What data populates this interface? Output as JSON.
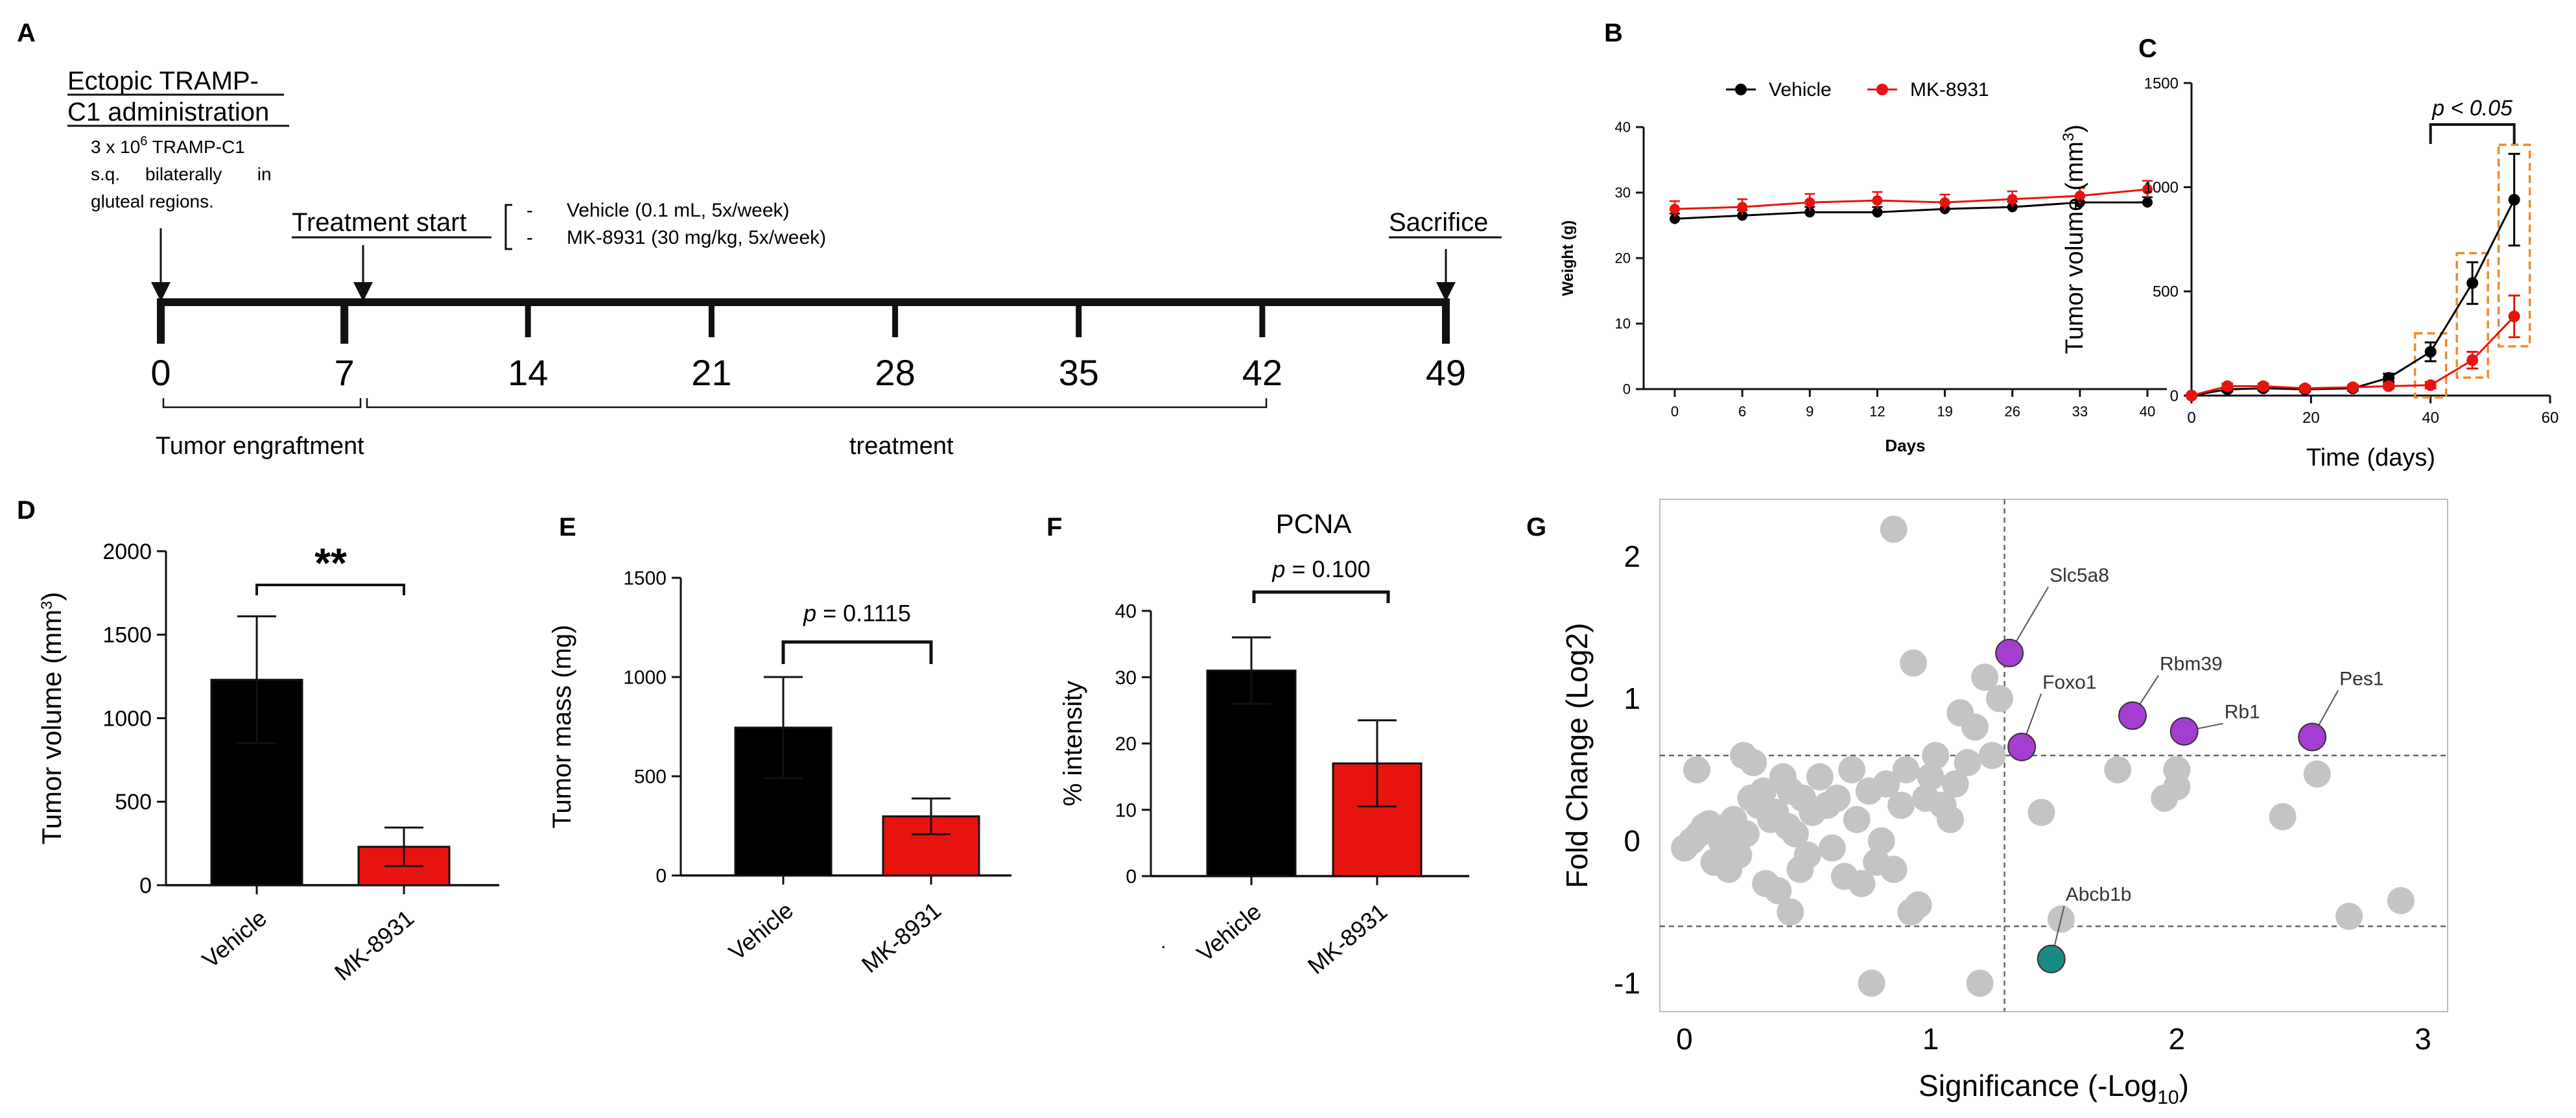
{
  "colors": {
    "vehicle": "#000000",
    "mk": "#e8130f",
    "gray_point": "#c4c4c4",
    "purple": "#a43ed1",
    "teal": "#1a8b84",
    "orange_box": "#f08a2a",
    "dash": "#666666"
  },
  "panels": {
    "A": {
      "letter": "A",
      "ectopic_line1": "Ectopic TRAMP-",
      "ectopic_line2": "C1 administration",
      "desc_line1": "3   x   10",
      "desc_sup": "6",
      "desc_line1_rest": "  TRAMP-C1",
      "desc_line2": "s.q.     bilaterally       in",
      "desc_line3": "gluteal regions.",
      "treatment_start": "Treatment start",
      "vehicle_regimen": "Vehicle (0.1 mL, 5x/week)",
      "mk_regimen": "MK-8931 (30 mg/kg, 5x/week)",
      "dash_mark": "-",
      "sacrifice": "Sacrifice",
      "days": [
        "0",
        "7",
        "14",
        "21",
        "28",
        "35",
        "42",
        "49"
      ],
      "engraftment_label": "Tumor engraftment",
      "treatment_label": "treatment"
    },
    "B": {
      "letter": "B"
    },
    "C": {
      "letter": "C"
    },
    "D": {
      "letter": "D"
    },
    "E": {
      "letter": "E"
    },
    "F": {
      "letter": "F"
    },
    "G": {
      "letter": "G"
    }
  },
  "chart_data": [
    {
      "id": "B",
      "type": "line",
      "title": "",
      "xlabel": "Days",
      "ylabel": "Weight (g)",
      "categories": [
        "0",
        "6",
        "9",
        "12",
        "19",
        "26",
        "33",
        "40"
      ],
      "ylim": [
        0,
        40
      ],
      "yticks": [
        "0",
        "10",
        "20",
        "30",
        "40"
      ],
      "legend": [
        "Vehicle",
        "MK-8931"
      ],
      "legend_position": "top",
      "series": [
        {
          "name": "Vehicle",
          "values": [
            26.0,
            26.5,
            27.0,
            27.0,
            27.5,
            27.8,
            28.5,
            28.5
          ],
          "errors": [
            0.8,
            0.8,
            0.8,
            0.8,
            0.8,
            0.8,
            0.8,
            0.8
          ]
        },
        {
          "name": "MK-8931",
          "values": [
            27.5,
            27.8,
            28.5,
            28.8,
            28.5,
            29.0,
            29.5,
            30.5
          ],
          "errors": [
            1.2,
            1.2,
            1.3,
            1.3,
            1.2,
            1.2,
            1.2,
            1.3
          ]
        }
      ]
    },
    {
      "id": "C",
      "type": "line",
      "title": "",
      "xlabel": "Time (days)",
      "ylabel": "Tumor volume (mm",
      "ylabel_sup": "3",
      "ylabel_end": ")",
      "xlim": [
        0,
        60
      ],
      "ylim": [
        0,
        1500
      ],
      "xticks": [
        "0",
        "20",
        "40",
        "60"
      ],
      "yticks": [
        "0",
        "500",
        "1000",
        "1500"
      ],
      "annotation": "p < 0.05",
      "series": [
        {
          "name": "Vehicle",
          "x": [
            0,
            6,
            12,
            19,
            27,
            33,
            40,
            47,
            54
          ],
          "values": [
            0,
            30,
            35,
            30,
            35,
            85,
            210,
            540,
            940
          ],
          "errors": [
            0,
            10,
            10,
            10,
            10,
            20,
            45,
            100,
            220
          ]
        },
        {
          "name": "MK-8931",
          "x": [
            0,
            6,
            12,
            19,
            27,
            33,
            40,
            47,
            54
          ],
          "values": [
            0,
            45,
            45,
            35,
            40,
            45,
            50,
            170,
            380
          ],
          "errors": [
            0,
            12,
            12,
            10,
            10,
            10,
            15,
            40,
            100
          ]
        }
      ],
      "highlight_boxes_x": [
        40,
        47,
        54
      ]
    },
    {
      "id": "D",
      "type": "bar",
      "title": "",
      "categories": [
        "Vehicle",
        "MK-8931"
      ],
      "values": [
        1230,
        230
      ],
      "errors": [
        380,
        115
      ],
      "ylabel": "Tumor volume  (mm",
      "ylabel_sup": "3",
      "ylabel_end": ")",
      "ylim": [
        0,
        2000
      ],
      "yticks": [
        "0",
        "500",
        "1000",
        "1500",
        "2000"
      ],
      "significance": "**"
    },
    {
      "id": "E",
      "type": "bar",
      "title": "",
      "categories": [
        "Vehicle",
        "MK-8931"
      ],
      "values": [
        745,
        298
      ],
      "errors": [
        255,
        90
      ],
      "ylabel": "Tumor mass (mg)",
      "ylim": [
        0,
        1500
      ],
      "yticks": [
        "0",
        "500",
        "1000",
        "1500"
      ],
      "significance_p": "p",
      "significance_rest": " = 0.1115"
    },
    {
      "id": "F",
      "type": "bar",
      "title": "PCNA",
      "categories": [
        "Vehicle",
        "MK-8931"
      ],
      "values": [
        31,
        17
      ],
      "errors": [
        5,
        6.5
      ],
      "ylabel": "% intensity",
      "ylim": [
        0,
        40
      ],
      "yticks": [
        "0",
        "10",
        "20",
        "30",
        "40"
      ],
      "significance_p": "p",
      "significance_rest": " = 0.100",
      "stray_mark": "."
    },
    {
      "id": "G",
      "type": "scatter",
      "title": "",
      "xlabel": "Significance (-Log",
      "xlabel_sub": "10",
      "xlabel_end": ")",
      "ylabel": "Fold Change (Log2)",
      "xlim": [
        -0.1,
        3.1
      ],
      "ylim": [
        -1.2,
        2.4
      ],
      "xticks": [
        "0",
        "1",
        "2",
        "3"
      ],
      "yticks": [
        "-1",
        "0",
        "1",
        "2"
      ],
      "thresholds": {
        "x": 1.3,
        "y_up": 0.6,
        "y_down": -0.6
      },
      "highlighted": [
        {
          "label": "Slc5a8",
          "x": 1.32,
          "y": 1.32,
          "group": "up"
        },
        {
          "label": "Foxo1",
          "x": 1.37,
          "y": 0.66,
          "group": "up"
        },
        {
          "label": "Rbm39",
          "x": 1.82,
          "y": 0.88,
          "group": "up"
        },
        {
          "label": "Rb1",
          "x": 2.03,
          "y": 0.77,
          "group": "up"
        },
        {
          "label": "Pes1",
          "x": 2.55,
          "y": 0.73,
          "group": "up"
        },
        {
          "label": "Abcb1b",
          "x": 1.49,
          "y": -0.83,
          "group": "down"
        }
      ],
      "points": [
        [
          0.85,
          2.19
        ],
        [
          0.93,
          1.25
        ],
        [
          1.22,
          1.15
        ],
        [
          1.28,
          1.0
        ],
        [
          1.12,
          0.9
        ],
        [
          1.18,
          0.8
        ],
        [
          0.0,
          -0.05
        ],
        [
          0.03,
          0.0
        ],
        [
          0.06,
          0.05
        ],
        [
          0.08,
          0.1
        ],
        [
          0.1,
          0.12
        ],
        [
          0.12,
          -0.15
        ],
        [
          0.13,
          0.08
        ],
        [
          0.15,
          0.0
        ],
        [
          0.17,
          0.1
        ],
        [
          0.2,
          0.15
        ],
        [
          0.22,
          -0.1
        ],
        [
          0.25,
          0.05
        ],
        [
          0.27,
          0.3
        ],
        [
          0.28,
          0.55
        ],
        [
          0.3,
          0.25
        ],
        [
          0.32,
          0.35
        ],
        [
          0.33,
          -0.3
        ],
        [
          0.35,
          0.15
        ],
        [
          0.37,
          0.2
        ],
        [
          0.38,
          -0.35
        ],
        [
          0.4,
          0.45
        ],
        [
          0.42,
          0.1
        ],
        [
          0.43,
          -0.5
        ],
        [
          0.45,
          0.05
        ],
        [
          0.47,
          -0.2
        ],
        [
          0.48,
          0.3
        ],
        [
          0.5,
          -0.1
        ],
        [
          0.52,
          0.2
        ],
        [
          0.55,
          0.45
        ],
        [
          0.58,
          0.25
        ],
        [
          0.6,
          -0.05
        ],
        [
          0.62,
          0.3
        ],
        [
          0.65,
          -0.25
        ],
        [
          0.68,
          0.5
        ],
        [
          0.7,
          0.15
        ],
        [
          0.72,
          -0.3
        ],
        [
          0.75,
          0.35
        ],
        [
          0.78,
          -0.15
        ],
        [
          0.8,
          0.0
        ],
        [
          0.82,
          0.4
        ],
        [
          0.85,
          -0.2
        ],
        [
          0.88,
          0.25
        ],
        [
          0.9,
          0.5
        ],
        [
          0.92,
          -0.5
        ],
        [
          0.95,
          -0.45
        ],
        [
          0.98,
          0.3
        ],
        [
          1.0,
          0.45
        ],
        [
          1.02,
          0.6
        ],
        [
          1.05,
          0.25
        ],
        [
          1.08,
          0.15
        ],
        [
          1.1,
          0.4
        ],
        [
          1.15,
          0.55
        ],
        [
          1.25,
          0.6
        ],
        [
          0.05,
          0.5
        ],
        [
          0.18,
          -0.2
        ],
        [
          0.24,
          0.6
        ],
        [
          0.43,
          0.35
        ],
        [
          0.76,
          -1.0
        ],
        [
          1.2,
          -1.0
        ],
        [
          1.45,
          0.2
        ],
        [
          1.53,
          -0.55
        ],
        [
          1.76,
          0.5
        ],
        [
          1.95,
          0.3
        ],
        [
          2.0,
          0.38
        ],
        [
          2.0,
          0.5
        ],
        [
          2.43,
          0.17
        ],
        [
          2.57,
          0.47
        ],
        [
          2.7,
          -0.53
        ],
        [
          2.91,
          -0.42
        ]
      ]
    }
  ]
}
